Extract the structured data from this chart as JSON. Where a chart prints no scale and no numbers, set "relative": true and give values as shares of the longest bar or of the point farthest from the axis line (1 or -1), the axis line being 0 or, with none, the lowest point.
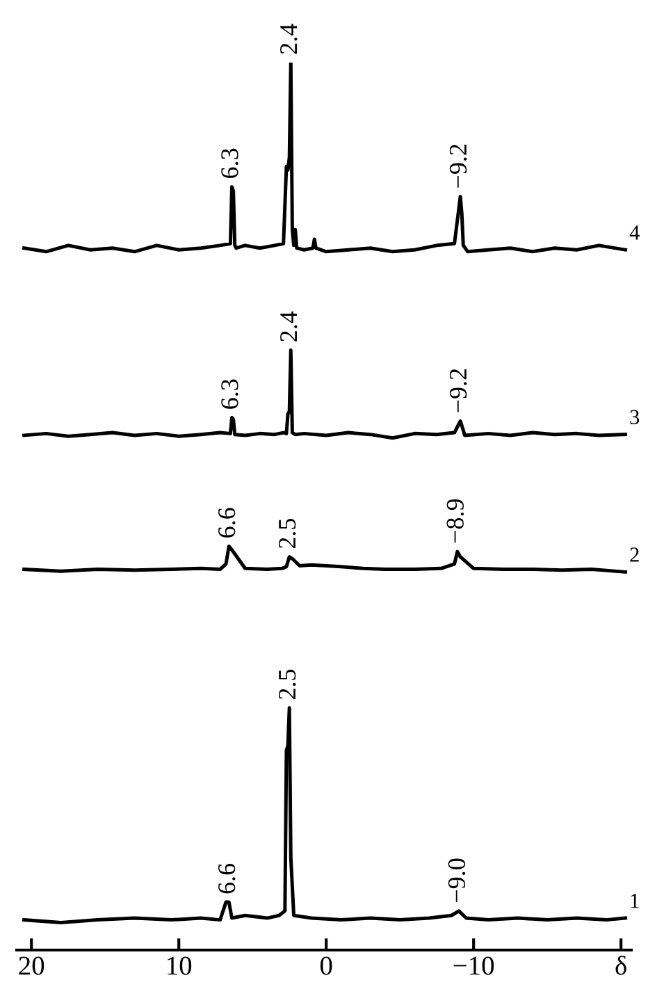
{
  "chart_data": {
    "type": "line",
    "relative": true,
    "xlim": [
      21,
      -20.7
    ],
    "xticks": [
      20,
      10,
      0,
      -10,
      {
        "value": -20,
        "label": "δ"
      }
    ],
    "grid": false,
    "marker": "none",
    "line_style": "solid",
    "series": [
      {
        "name": "4",
        "color": "#000000",
        "x": [
          20.5,
          19,
          17.5,
          16,
          14.5,
          13,
          11.5,
          10,
          8.5,
          7.2,
          6.5,
          6.4,
          6.3,
          6.2,
          6.1,
          5.5,
          4.5,
          3.5,
          2.9,
          2.7,
          2.6,
          2.5,
          2.4,
          2.3,
          2.2,
          2.1,
          2.0,
          1.5,
          0.9,
          0.8,
          0.7,
          0,
          -1.5,
          -3,
          -4.5,
          -6,
          -7.5,
          -8.7,
          -9.1,
          -9.2,
          -9.3,
          -9.6,
          -11,
          -12.5,
          -14,
          -15.5,
          -17,
          -18.5,
          -20.3
        ],
        "values": [
          0.791,
          0.787,
          0.794,
          0.789,
          0.791,
          0.787,
          0.794,
          0.789,
          0.791,
          0.794,
          0.796,
          0.86,
          0.855,
          0.794,
          0.791,
          0.794,
          0.791,
          0.794,
          0.796,
          0.883,
          0.879,
          0.893,
          1.0,
          0.812,
          0.794,
          0.812,
          0.791,
          0.789,
          0.791,
          0.801,
          0.791,
          0.787,
          0.789,
          0.791,
          0.787,
          0.789,
          0.794,
          0.796,
          0.849,
          0.83,
          0.794,
          0.787,
          0.789,
          0.791,
          0.787,
          0.791,
          0.789,
          0.794,
          0.789
        ]
      },
      {
        "name": "3",
        "color": "#000000",
        "x": [
          20.5,
          19,
          17.5,
          16,
          14.5,
          13,
          11.5,
          10,
          8.5,
          7.2,
          6.5,
          6.4,
          6.3,
          6.2,
          5.5,
          4.5,
          3.5,
          2.9,
          2.7,
          2.6,
          2.5,
          2.4,
          2.3,
          2.1,
          1.5,
          0,
          -1.5,
          -3,
          -4.5,
          -6,
          -7.5,
          -8.7,
          -9.1,
          -9.2,
          -9.4,
          -11,
          -12.5,
          -14,
          -15.5,
          -17,
          -18.5,
          -20.3
        ],
        "values": [
          0.58,
          0.582,
          0.579,
          0.581,
          0.583,
          0.58,
          0.582,
          0.579,
          0.581,
          0.583,
          0.582,
          0.6,
          0.598,
          0.581,
          0.58,
          0.582,
          0.581,
          0.583,
          0.582,
          0.604,
          0.607,
          0.676,
          0.583,
          0.581,
          0.582,
          0.58,
          0.583,
          0.581,
          0.577,
          0.582,
          0.581,
          0.583,
          0.596,
          0.591,
          0.58,
          0.582,
          0.58,
          0.583,
          0.581,
          0.582,
          0.58,
          0.581
        ]
      },
      {
        "name": "2",
        "color": "#000000",
        "x": [
          20.5,
          18,
          15.5,
          13,
          10.5,
          8.5,
          7.2,
          6.8,
          6.6,
          6.4,
          5.5,
          4,
          3,
          2.7,
          2.5,
          2.3,
          1.8,
          1,
          0,
          -1,
          -2.5,
          -4,
          -6,
          -7.8,
          -8.7,
          -8.9,
          -9.1,
          -10,
          -12,
          -14,
          -16,
          -18,
          -20.3
        ],
        "values": [
          0.429,
          0.427,
          0.429,
          0.428,
          0.429,
          0.43,
          0.429,
          0.435,
          0.455,
          0.451,
          0.43,
          0.429,
          0.43,
          0.432,
          0.443,
          0.441,
          0.433,
          0.434,
          0.433,
          0.432,
          0.43,
          0.429,
          0.429,
          0.43,
          0.435,
          0.449,
          0.443,
          0.43,
          0.429,
          0.429,
          0.428,
          0.429,
          0.426
        ]
      },
      {
        "name": "1",
        "color": "#000000",
        "x": [
          20.5,
          18,
          15.5,
          13,
          10.5,
          8.5,
          7.2,
          6.8,
          6.6,
          6.4,
          5.5,
          4,
          3.2,
          2.8,
          2.7,
          2.6,
          2.5,
          2.4,
          2.2,
          1,
          -1,
          -3,
          -5,
          -7,
          -8.5,
          -9,
          -9.5,
          -11,
          -13,
          -15,
          -17,
          -19,
          -20.3
        ],
        "values": [
          0.034,
          0.031,
          0.034,
          0.036,
          0.034,
          0.036,
          0.034,
          0.054,
          0.054,
          0.036,
          0.039,
          0.036,
          0.039,
          0.044,
          0.225,
          0.23,
          0.273,
          0.104,
          0.039,
          0.036,
          0.034,
          0.036,
          0.034,
          0.036,
          0.039,
          0.044,
          0.036,
          0.034,
          0.036,
          0.034,
          0.036,
          0.034,
          0.036
        ]
      }
    ],
    "annotations": [
      {
        "text": "6.3",
        "x": 6.4,
        "y": 0.86
      },
      {
        "text": "2.4",
        "x": 2.4,
        "y": 1.0
      },
      {
        "text": "−9.2",
        "x": -9.1,
        "y": 0.849
      },
      {
        "text": "6.3",
        "x": 6.4,
        "y": 0.6
      },
      {
        "text": "2.4",
        "x": 2.4,
        "y": 0.676
      },
      {
        "text": "−9.2",
        "x": -9.1,
        "y": 0.596
      },
      {
        "text": "6.6",
        "x": 6.6,
        "y": 0.455
      },
      {
        "text": "2.5",
        "x": 2.5,
        "y": 0.443
      },
      {
        "text": "−8.9",
        "x": -8.9,
        "y": 0.449
      },
      {
        "text": "6.6",
        "x": 6.6,
        "y": 0.054
      },
      {
        "text": "2.5",
        "x": 2.5,
        "y": 0.273
      },
      {
        "text": "−9.0",
        "x": -9.0,
        "y": 0.044
      }
    ]
  }
}
